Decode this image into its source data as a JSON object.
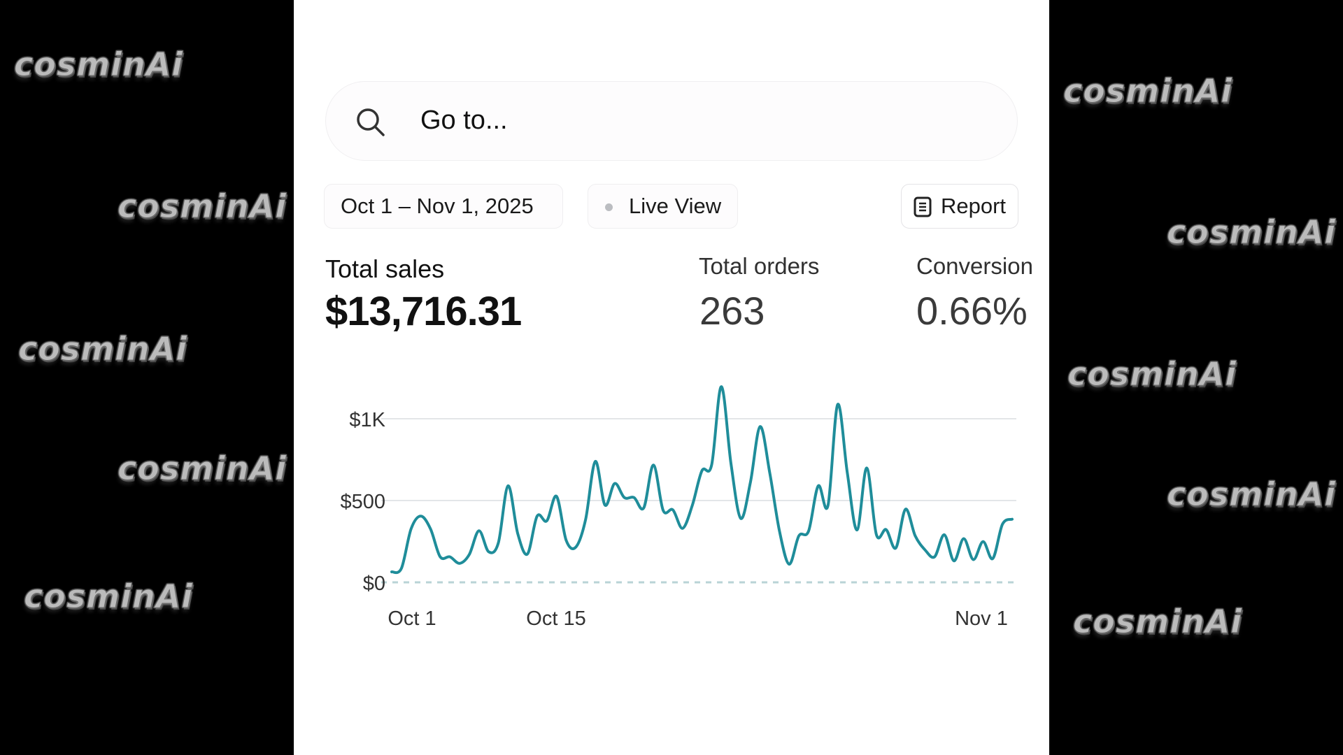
{
  "watermark": "cosminAi",
  "search": {
    "placeholder": "Go to...",
    "icon": "search-icon"
  },
  "filters": {
    "date_range": "Oct 1 – Nov 1, 2025",
    "live_view": "Live View",
    "report": "Report",
    "report_icon": "document-icon"
  },
  "metrics": {
    "total_sales": {
      "label": "Total sales",
      "value": "$13,716.31"
    },
    "total_orders": {
      "label": "Total orders",
      "value": "263"
    },
    "conversion": {
      "label": "Conversion",
      "value": "0.66%"
    }
  },
  "chart_data": {
    "type": "line",
    "title": "",
    "xlabel": "",
    "ylabel": "",
    "x_range": [
      "Oct 1",
      "Nov 1"
    ],
    "ylim": [
      0,
      1200
    ],
    "y_ticks": [
      {
        "value": 0,
        "label": "$0"
      },
      {
        "value": 500,
        "label": "$500"
      },
      {
        "value": 1000,
        "label": "$1K"
      }
    ],
    "x_ticks": [
      "Oct 1",
      "Oct 15",
      "Nov 1"
    ],
    "grid": true,
    "zero_line": "dashed",
    "line_color": "#1f8d9a",
    "series": [
      {
        "values": [
          64,
          85,
          327,
          405,
          327,
          156,
          156,
          116,
          170,
          315,
          187,
          241,
          590,
          298,
          173,
          405,
          376,
          526,
          256,
          216,
          384,
          739,
          472,
          604,
          518,
          518,
          455,
          717,
          440,
          443,
          330,
          469,
          682,
          717,
          1196,
          724,
          391,
          611,
          952,
          668,
          313,
          111,
          284,
          313,
          590,
          469,
          1087,
          668,
          320,
          699,
          291,
          322,
          210,
          447,
          284,
          199,
          156,
          291,
          131,
          267,
          139,
          249,
          145,
          355,
          386
        ]
      }
    ]
  }
}
